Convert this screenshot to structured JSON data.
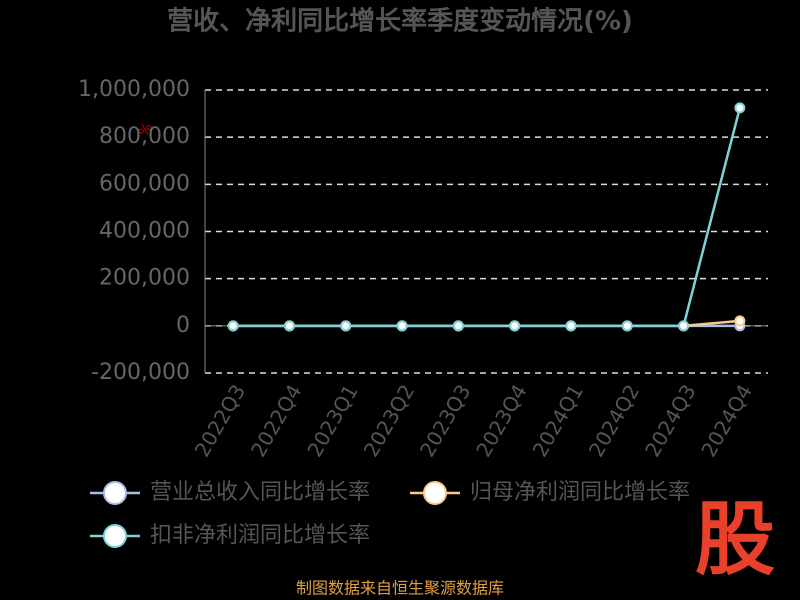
{
  "chart_data": {
    "type": "line",
    "title": "营收、净利同比增长率季度变动情况(%)",
    "y_unit": "%",
    "source": "制图数据来自恒生聚源数据库",
    "watermark": "股",
    "categories": [
      "2022Q3",
      "2022Q4",
      "2023Q1",
      "2023Q2",
      "2023Q3",
      "2023Q4",
      "2024Q1",
      "2024Q2",
      "2024Q3",
      "2024Q4"
    ],
    "series": [
      {
        "name": "营业总收入同比增长率",
        "color": "#a9bde0",
        "values": [
          0,
          0,
          0,
          0,
          0,
          0,
          0,
          0,
          0,
          0
        ]
      },
      {
        "name": "归母净利润同比增长率",
        "color": "#f7c98c",
        "values": [
          0,
          0,
          0,
          0,
          0,
          0,
          0,
          0,
          0,
          21000
        ]
      },
      {
        "name": "扣非净利润同比增长率",
        "color": "#80d2d9",
        "values": [
          0,
          0,
          0,
          0,
          0,
          0,
          0,
          0,
          0,
          924000
        ]
      }
    ],
    "ylim": [
      -200000,
      1000000
    ],
    "yticks": [
      {
        "value": -200000,
        "label": "-200,000"
      },
      0,
      {
        "value": 200000,
        "label": "200,000"
      },
      {
        "value": 400000,
        "label": "400,000"
      },
      {
        "value": 600000,
        "label": "600,000"
      },
      {
        "value": 800000,
        "label": "800,000"
      },
      {
        "value": 1000000,
        "label": "1,000,000"
      }
    ],
    "grid": true
  }
}
